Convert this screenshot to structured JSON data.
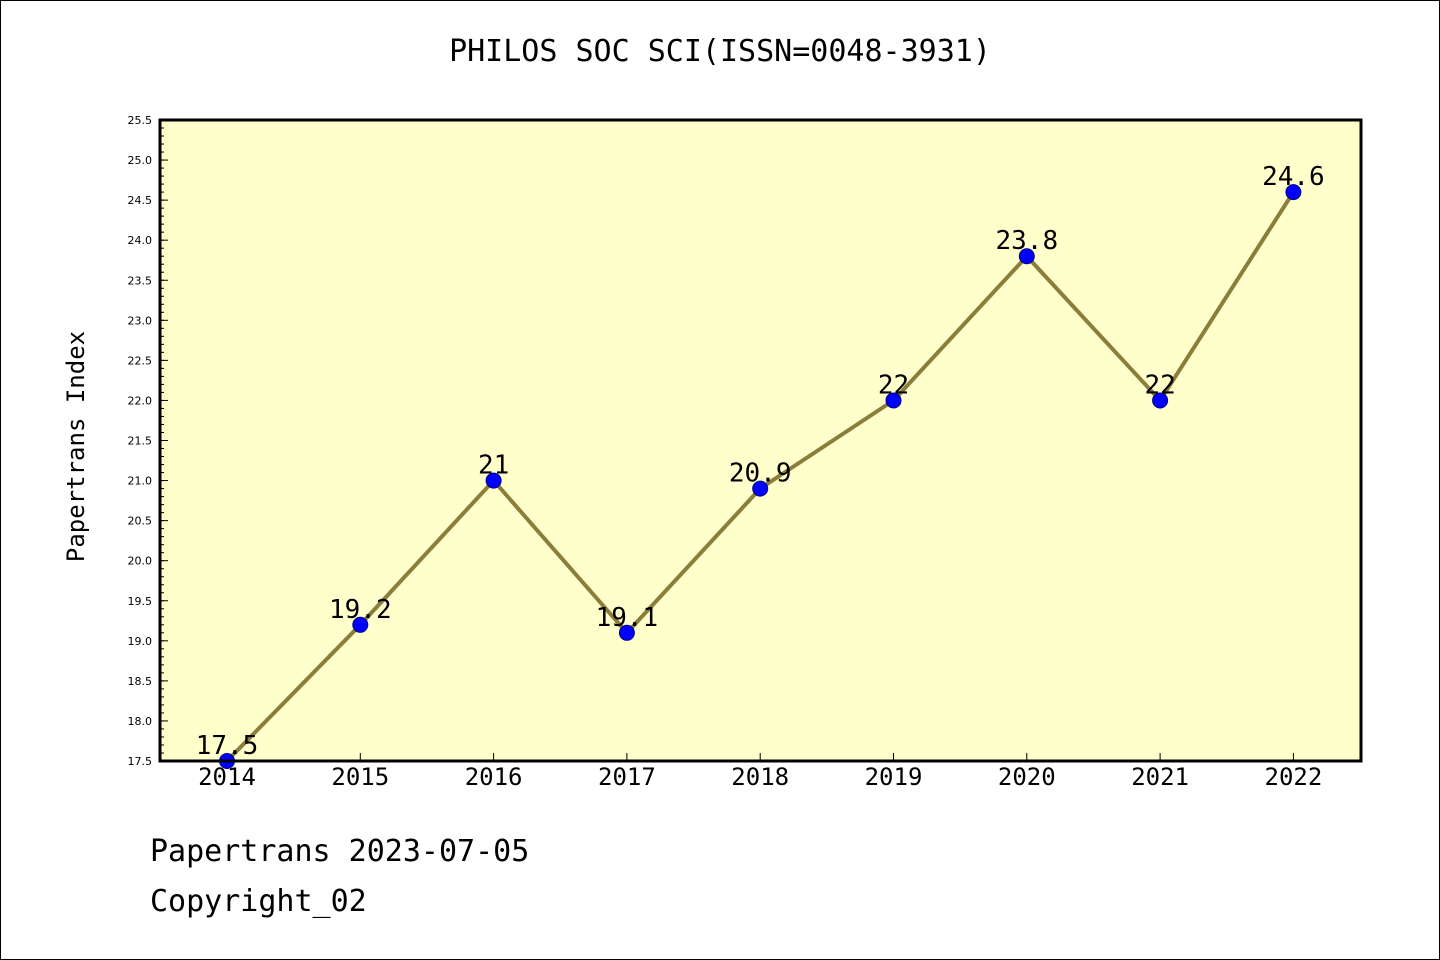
{
  "colors": {
    "plot_background": "#ffffcc",
    "line": "#8b7d3a",
    "marker": "#0000ff",
    "frame": "#000000"
  },
  "footer": {
    "line1": "Papertrans 2023-07-05",
    "line2": "Copyright_02"
  },
  "chart_data": {
    "type": "line",
    "title": "PHILOS SOC SCI(ISSN=0048-3931)",
    "xlabel": "",
    "ylabel": "Papertrans Index",
    "x": [
      "2014",
      "2015",
      "2016",
      "2017",
      "2018",
      "2019",
      "2020",
      "2021",
      "2022"
    ],
    "values": [
      17.5,
      19.2,
      21,
      19.1,
      20.9,
      22,
      23.8,
      22,
      24.6
    ],
    "data_labels": [
      "17.5",
      "19.2",
      "21",
      "19.1",
      "20.9",
      "22",
      "23.8",
      "22",
      "24.6"
    ],
    "ylim": [
      17.5,
      25.5
    ],
    "yticks": [
      "17.5",
      "18.0",
      "18.5",
      "19.0",
      "19.5",
      "20.0",
      "20.5",
      "21.0",
      "21.5",
      "22.0",
      "22.5",
      "23.0",
      "23.5",
      "24.0",
      "24.5",
      "25.0",
      "25.5"
    ],
    "grid": false,
    "legend": "none"
  }
}
